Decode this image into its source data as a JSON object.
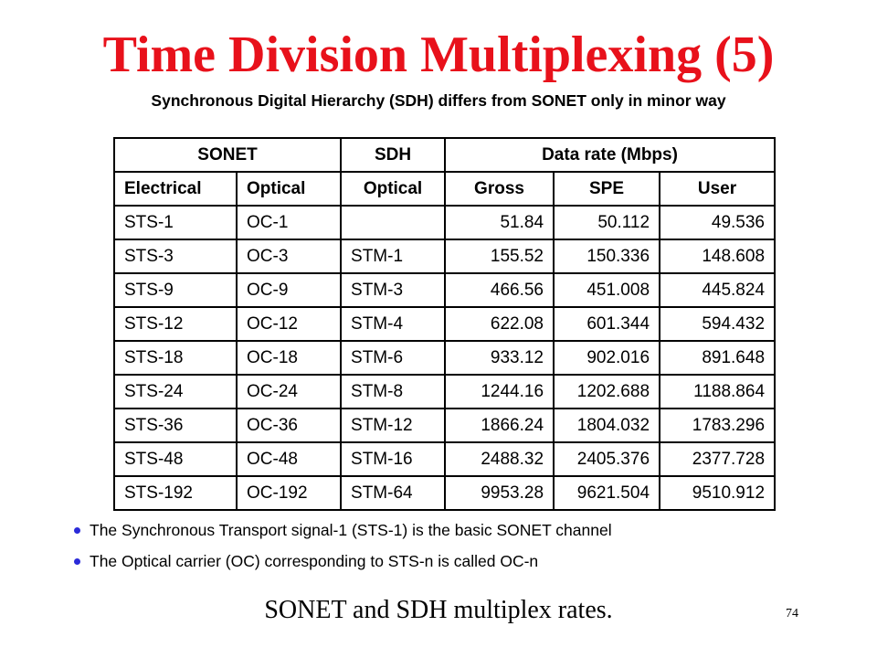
{
  "slide": {
    "title": "Time Division Multiplexing (5)",
    "subtitle": "Synchronous Digital Hierarchy (SDH) differs from SONET only in minor way",
    "caption": "SONET and SDH multiplex rates.",
    "page_number": "74"
  },
  "table": {
    "group_headers": [
      "SONET",
      "SDH",
      "Data rate (Mbps)"
    ],
    "column_headers": [
      "Electrical",
      "Optical",
      "Optical",
      "Gross",
      "SPE",
      "User"
    ],
    "rows": [
      [
        "STS-1",
        "OC-1",
        "",
        "51.84",
        "50.112",
        "49.536"
      ],
      [
        "STS-3",
        "OC-3",
        "STM-1",
        "155.52",
        "150.336",
        "148.608"
      ],
      [
        "STS-9",
        "OC-9",
        "STM-3",
        "466.56",
        "451.008",
        "445.824"
      ],
      [
        "STS-12",
        "OC-12",
        "STM-4",
        "622.08",
        "601.344",
        "594.432"
      ],
      [
        "STS-18",
        "OC-18",
        "STM-6",
        "933.12",
        "902.016",
        "891.648"
      ],
      [
        "STS-24",
        "OC-24",
        "STM-8",
        "1244.16",
        "1202.688",
        "1188.864"
      ],
      [
        "STS-36",
        "OC-36",
        "STM-12",
        "1866.24",
        "1804.032",
        "1783.296"
      ],
      [
        "STS-48",
        "OC-48",
        "STM-16",
        "2488.32",
        "2405.376",
        "2377.728"
      ],
      [
        "STS-192",
        "OC-192",
        "STM-64",
        "9953.28",
        "9621.504",
        "9510.912"
      ]
    ]
  },
  "bullets": [
    "The Synchronous Transport signal-1 (STS-1) is the basic SONET channel",
    "The Optical carrier (OC) corresponding to STS-n is called OC-n"
  ],
  "colors": {
    "title": "#e8111b",
    "bullet": "#2b2bd9"
  }
}
